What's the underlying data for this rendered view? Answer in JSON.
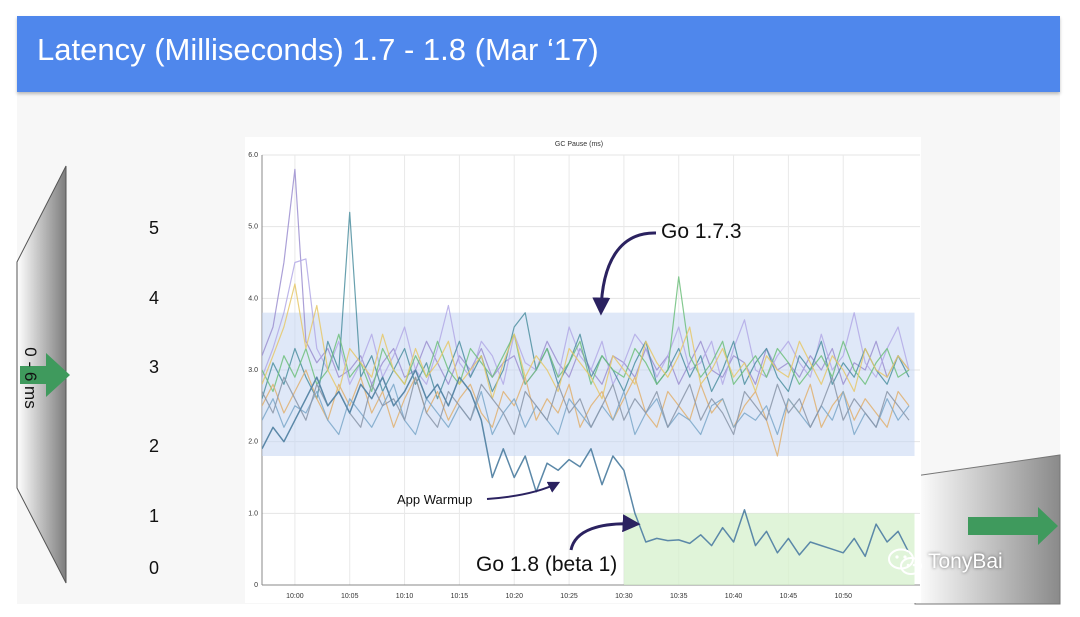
{
  "slide": {
    "title": "Latency (Milliseconds) 1.7 - 1.8 (Mar ‘17)"
  },
  "scale": {
    "labels": [
      "5",
      "4",
      "3",
      "2",
      "1",
      "0"
    ],
    "range_label": "0 - 6 ms"
  },
  "watermark": {
    "icon": "wechat-icon",
    "text": "TonyBai"
  },
  "colors": {
    "header": "#4f87ec",
    "arrow": "#3f9a5d",
    "go17_band": "#c5d6f3",
    "go18_band": "#d5f0cc"
  },
  "chart_data": {
    "type": "line",
    "title": "GC Pause (ms)",
    "xlabel": "",
    "ylabel": "",
    "ylim": [
      0,
      6
    ],
    "yticks": [
      "0",
      "1.0",
      "2.0",
      "3.0",
      "4.0",
      "5.0",
      "6.0"
    ],
    "xlim": [
      -3,
      57
    ],
    "xticks": [
      {
        "label": "10:00",
        "x": 0
      },
      {
        "label": "10:05",
        "x": 5
      },
      {
        "label": "10:10",
        "x": 10
      },
      {
        "label": "10:15",
        "x": 15
      },
      {
        "label": "10:20",
        "x": 20
      },
      {
        "label": "10:25",
        "x": 25
      },
      {
        "label": "10:30",
        "x": 30
      },
      {
        "label": "10:35",
        "x": 35
      },
      {
        "label": "10:40",
        "x": 40
      },
      {
        "label": "10:45",
        "x": 45
      },
      {
        "label": "10:50",
        "x": 50
      }
    ],
    "x_unit": "minutes after 10:00",
    "bands": [
      {
        "name": "Go 1.7.3 range",
        "x": [
          -3,
          56.5
        ],
        "y": [
          1.8,
          3.8
        ]
      },
      {
        "name": "Go 1.8 (beta 1) range",
        "x": [
          30,
          56.5
        ],
        "y": [
          0,
          1.0
        ]
      }
    ],
    "annotations": [
      {
        "text": "Go 1.7.3",
        "points_to": {
          "x": 27,
          "y": 3.7
        }
      },
      {
        "text": "App Warmup",
        "points_to": {
          "x": 23,
          "y": 1.4
        }
      },
      {
        "text": "Go 1.8 (beta 1)",
        "points_to": {
          "x": 30,
          "y": 0.85
        }
      }
    ],
    "x": [
      -3,
      -2,
      -1,
      0,
      1,
      2,
      3,
      4,
      5,
      6,
      7,
      8,
      9,
      10,
      11,
      12,
      13,
      14,
      15,
      16,
      17,
      18,
      19,
      20,
      21,
      22,
      23,
      24,
      25,
      26,
      27,
      28,
      29,
      30,
      31,
      32,
      33,
      34,
      35,
      36,
      37,
      38,
      39,
      40,
      41,
      42,
      43,
      44,
      45,
      46,
      47,
      48,
      49,
      50,
      51,
      52,
      53,
      54,
      55,
      56
    ],
    "series": [
      {
        "name": "go1.7-purple-spike",
        "color": "#9c8fd0",
        "values": [
          3.2,
          3.6,
          4.5,
          5.8,
          3.4,
          3.1,
          3.3,
          2.9,
          3.0,
          3.2,
          2.8,
          3.1,
          3.3,
          2.9,
          3.0,
          3.4,
          3.1,
          2.8,
          3.2,
          3.0,
          3.3,
          2.9,
          3.1,
          3.2,
          2.8,
          3.0,
          3.4,
          3.1,
          2.9,
          3.3,
          3.0,
          2.8,
          3.2,
          3.1,
          2.9,
          3.3,
          3.0,
          3.2,
          2.8,
          3.1,
          3.4,
          3.0,
          2.9,
          3.2,
          3.1,
          2.8,
          3.3,
          3.0,
          3.1,
          2.9,
          3.2,
          3.0,
          3.3,
          2.8,
          3.1,
          3.0,
          3.4,
          2.9,
          3.2,
          3.0
        ]
      },
      {
        "name": "go1.7-lavender",
        "color": "#b3a9e6",
        "values": [
          2.9,
          3.3,
          3.8,
          4.5,
          4.55,
          3.3,
          3.0,
          3.4,
          2.8,
          3.1,
          3.5,
          2.9,
          3.2,
          3.6,
          3.0,
          2.8,
          3.3,
          3.9,
          3.1,
          2.9,
          3.4,
          3.2,
          2.8,
          3.5,
          3.1,
          3.0,
          3.3,
          2.9,
          3.6,
          3.2,
          3.0,
          3.4,
          2.8,
          3.1,
          3.5,
          3.3,
          2.9,
          3.2,
          3.6,
          3.0,
          3.1,
          3.4,
          2.8,
          3.3,
          3.7,
          3.0,
          2.9,
          3.2,
          3.4,
          3.1,
          2.9,
          3.5,
          3.0,
          3.2,
          3.8,
          3.1,
          2.9,
          3.3,
          3.6,
          3.0
        ]
      },
      {
        "name": "go1.7-teal-spike",
        "color": "#4d8fa0",
        "values": [
          2.6,
          3.1,
          2.8,
          3.3,
          2.9,
          2.6,
          3.4,
          3.0,
          5.2,
          2.9,
          3.2,
          2.7,
          3.0,
          3.3,
          2.8,
          3.1,
          2.6,
          3.0,
          3.4,
          2.9,
          3.2,
          2.7,
          3.0,
          3.6,
          3.8,
          3.0,
          3.3,
          2.8,
          3.1,
          3.5,
          2.9,
          3.2,
          3.0,
          2.7,
          3.1,
          3.4,
          2.8,
          3.0,
          3.3,
          2.9,
          3.2,
          2.7,
          3.0,
          3.4,
          2.8,
          3.1,
          3.3,
          2.9,
          2.7,
          3.2,
          3.0,
          3.4,
          2.8,
          3.1,
          2.9,
          3.3,
          3.0,
          2.8,
          3.2,
          2.9
        ]
      },
      {
        "name": "go1.7-green",
        "color": "#6fc07c",
        "values": [
          3.0,
          2.7,
          3.2,
          2.9,
          3.3,
          2.8,
          3.0,
          3.5,
          2.9,
          3.1,
          2.7,
          3.3,
          3.0,
          2.8,
          3.2,
          2.9,
          3.4,
          3.0,
          2.8,
          3.3,
          3.1,
          2.9,
          3.2,
          3.5,
          2.8,
          3.0,
          3.3,
          2.9,
          3.1,
          3.4,
          2.8,
          3.2,
          3.0,
          2.9,
          3.3,
          3.1,
          2.8,
          3.0,
          4.3,
          3.2,
          2.9,
          3.1,
          3.4,
          2.8,
          3.0,
          3.2,
          2.9,
          3.3,
          3.1,
          2.8,
          3.0,
          3.2,
          2.9,
          3.4,
          3.0,
          2.8,
          3.1,
          3.3,
          2.9,
          3.0
        ]
      },
      {
        "name": "go1.7-yellow",
        "color": "#e6c86a",
        "values": [
          2.8,
          3.2,
          3.6,
          4.2,
          3.3,
          3.9,
          3.0,
          2.7,
          3.3,
          3.1,
          2.9,
          3.5,
          3.0,
          2.8,
          3.3,
          2.9,
          3.1,
          3.4,
          2.8,
          3.0,
          3.2,
          2.6,
          3.1,
          3.5,
          2.9,
          3.2,
          3.0,
          2.7,
          3.3,
          3.1,
          2.9,
          2.6,
          3.2,
          3.0,
          2.8,
          3.4,
          3.1,
          2.9,
          3.2,
          3.6,
          2.8,
          3.0,
          3.3,
          2.9,
          3.1,
          2.7,
          3.2,
          3.0,
          2.9,
          3.4,
          3.1,
          2.8,
          3.2,
          3.0,
          2.7,
          3.3,
          3.0,
          2.9,
          3.2,
          3.0
        ]
      },
      {
        "name": "go1.7-orange",
        "color": "#e0b070",
        "values": [
          2.5,
          2.8,
          2.4,
          2.7,
          3.0,
          2.6,
          2.3,
          2.8,
          2.5,
          2.9,
          2.4,
          2.7,
          2.2,
          2.6,
          2.9,
          2.4,
          2.7,
          2.3,
          2.6,
          2.8,
          2.4,
          2.2,
          2.7,
          2.5,
          2.9,
          2.3,
          2.6,
          2.4,
          2.8,
          2.2,
          2.5,
          2.7,
          2.3,
          2.6,
          2.9,
          2.4,
          2.2,
          2.7,
          2.5,
          2.3,
          2.8,
          2.4,
          2.6,
          2.2,
          2.5,
          2.7,
          2.3,
          1.8,
          2.6,
          2.4,
          2.8,
          2.2,
          2.5,
          2.7,
          2.3,
          2.6,
          2.4,
          2.2,
          2.7,
          2.5
        ]
      },
      {
        "name": "go1.7-blue-lower",
        "color": "#7ba7c9",
        "values": [
          2.3,
          2.6,
          2.2,
          2.5,
          2.4,
          2.7,
          2.3,
          2.1,
          2.6,
          2.4,
          2.2,
          2.5,
          2.8,
          2.3,
          2.1,
          2.6,
          2.4,
          2.2,
          2.5,
          2.3,
          2.7,
          2.1,
          2.4,
          2.6,
          2.2,
          2.5,
          2.3,
          2.1,
          2.6,
          2.4,
          2.2,
          2.5,
          2.3,
          2.7,
          2.1,
          2.4,
          2.6,
          2.2,
          2.4,
          2.3,
          2.1,
          2.5,
          2.6,
          2.2,
          2.4,
          2.3,
          2.5,
          2.1,
          2.6,
          2.4,
          2.2,
          2.5,
          2.3,
          2.7,
          2.1,
          2.4,
          2.2,
          2.6,
          2.3,
          2.5
        ]
      },
      {
        "name": "go1.7-slate",
        "color": "#8a95a8",
        "values": [
          2.7,
          2.4,
          2.9,
          2.6,
          2.3,
          2.8,
          2.5,
          2.7,
          2.4,
          2.2,
          2.8,
          2.5,
          2.6,
          2.3,
          2.9,
          2.4,
          2.2,
          2.7,
          2.5,
          2.3,
          2.8,
          2.6,
          2.4,
          2.1,
          2.7,
          2.5,
          2.3,
          2.8,
          2.4,
          2.6,
          2.2,
          2.5,
          2.8,
          2.3,
          2.6,
          2.4,
          2.7,
          2.2,
          2.5,
          2.8,
          2.3,
          2.6,
          2.4,
          2.1,
          2.7,
          2.5,
          2.3,
          2.8,
          2.4,
          2.6,
          2.2,
          2.5,
          2.9,
          2.3,
          2.6,
          2.4,
          2.2,
          2.7,
          2.5,
          2.3
        ]
      },
      {
        "name": "go1.8-beta1",
        "color": "#5b88a8",
        "values": [
          1.9,
          2.2,
          2.0,
          2.3,
          2.6,
          2.9,
          2.5,
          2.7,
          2.4,
          2.8,
          2.6,
          2.9,
          2.5,
          2.7,
          3.0,
          2.6,
          2.8,
          2.5,
          2.9,
          2.7,
          2.3,
          1.5,
          1.9,
          1.5,
          1.8,
          1.3,
          1.7,
          1.6,
          1.75,
          1.65,
          1.9,
          1.4,
          1.8,
          1.6,
          1.0,
          0.6,
          0.65,
          0.62,
          0.63,
          0.58,
          0.7,
          0.55,
          0.8,
          0.6,
          1.05,
          0.55,
          0.75,
          0.45,
          0.65,
          0.42,
          0.6,
          0.55,
          0.5,
          0.45,
          0.65,
          0.4,
          0.85,
          0.6,
          0.75,
          0.45
        ]
      }
    ]
  }
}
